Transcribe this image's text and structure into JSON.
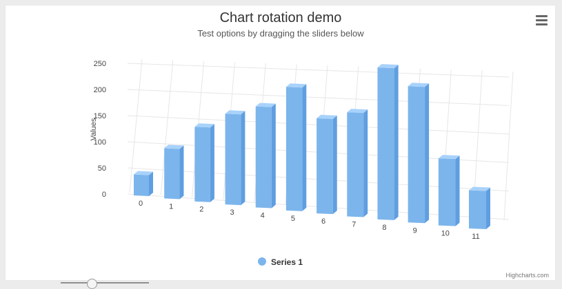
{
  "chart": {
    "title": "Chart rotation demo",
    "subtitle": "Test options by dragging the sliders below",
    "y_axis_label": "Values",
    "credits": "Highcharts.com",
    "menu_icon": "hamburger-menu-icon",
    "legend_marker_color": "#7cb5ec"
  },
  "chart_data": {
    "type": "bar",
    "title": "Chart rotation demo",
    "subtitle": "Test options by dragging the sliders below",
    "categories": [
      "0",
      "1",
      "2",
      "3",
      "4",
      "5",
      "6",
      "7",
      "8",
      "9",
      "10",
      "11"
    ],
    "x_ticks": [
      "0",
      "1",
      "2",
      "3",
      "4",
      "5",
      "6",
      "7",
      "8",
      "9",
      "10",
      "11"
    ],
    "y_ticks": [
      "0",
      "50",
      "100",
      "150",
      "200",
      "250"
    ],
    "series": [
      {
        "name": "Series 1",
        "values": [
          29.9,
          71.5,
          106.4,
          129.2,
          144.0,
          176.0,
          135.6,
          148.5,
          216.4,
          194.1,
          95.6,
          54.4
        ],
        "color": "#7cb5ec"
      }
    ],
    "ylabel": "Values",
    "xlabel": "",
    "ylim": [
      0,
      250
    ],
    "grid": true,
    "legend_position": "bottom-center"
  }
}
